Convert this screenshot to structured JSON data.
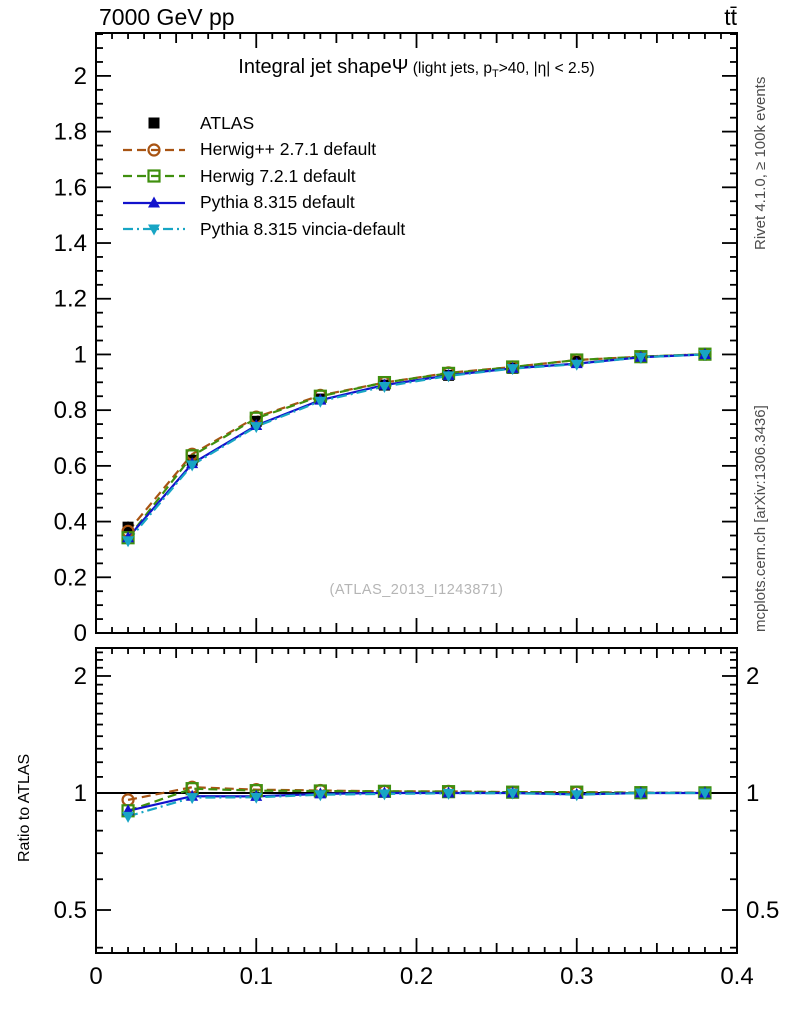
{
  "header": {
    "beam": "7000 GeV pp",
    "process": "tt̄"
  },
  "side": {
    "top": "Rivet 4.1.0, ≥ 100k events",
    "bottom": "mcplots.cern.ch [arXiv:1306.3436]"
  },
  "watermark": "(ATLAS_2013_I1243871)",
  "ratio_axis_label": "Ratio to ATLAS",
  "chart_data": {
    "type": "line",
    "title": "Integral jet shapeΨ",
    "title_note": {
      "pre": " (light jets, p",
      "sub": "T",
      "post": ">40, |η| < 2.5)"
    },
    "xlabel": "",
    "grid": false,
    "legend_position": "top-left-inside",
    "x": [
      0.02,
      0.06,
      0.1,
      0.14,
      0.18,
      0.22,
      0.26,
      0.3,
      0.34,
      0.38
    ],
    "axes": {
      "x": {
        "min": 0,
        "max": 0.4,
        "major_step": 0.1,
        "medium_step": 0.05,
        "minor_step": 0.01,
        "labels": [
          "0",
          "0.1",
          "0.2",
          "0.3",
          "0.4"
        ]
      },
      "main_y": {
        "scale": "linear",
        "min": 0,
        "max": 2.154,
        "minor_step": 0.05,
        "major_step": 0.2,
        "labels": [
          "0",
          "0.2",
          "0.4",
          "0.6",
          "0.8",
          "1",
          "1.2",
          "1.4",
          "1.6",
          "1.8",
          "2"
        ]
      },
      "ratio_y": {
        "scale": "log",
        "min": 0.388,
        "max": 2.36,
        "labeled_ticks": [
          0.5,
          1,
          2
        ],
        "minor_from": 0.4,
        "minor_to": 2.3,
        "minor_step": 0.1,
        "reference_line": 1
      }
    },
    "series": [
      {
        "name": "ATLAS",
        "color": "#000000",
        "marker": "square-filled",
        "line": "none",
        "values": [
          0.38,
          0.62,
          0.76,
          0.84,
          0.89,
          0.925,
          0.95,
          0.975,
          0.99,
          1.0
        ],
        "errors": [
          0.02,
          0.013,
          0.009,
          0.007,
          0.005,
          0.004,
          0.004,
          0.003,
          0.002,
          0.002
        ]
      },
      {
        "name": "Herwig++ 2.7.1 default",
        "color": "#a85413",
        "marker": "circle-open",
        "line": "dashed",
        "values": [
          0.365,
          0.642,
          0.775,
          0.853,
          0.899,
          0.934,
          0.955,
          0.98,
          0.992,
          1.001
        ],
        "ratio": [
          0.96,
          1.035,
          1.02,
          1.015,
          1.01,
          1.01,
          1.005,
          1.005,
          1.002,
          1.001
        ]
      },
      {
        "name": "Herwig 7.2.1 default",
        "color": "#3f8f0e",
        "marker": "square-open",
        "line": "dashed",
        "values": [
          0.342,
          0.636,
          0.771,
          0.85,
          0.899,
          0.932,
          0.955,
          0.98,
          0.992,
          1.001
        ],
        "ratio": [
          0.9,
          1.026,
          1.014,
          1.012,
          1.01,
          1.008,
          1.005,
          1.005,
          1.002,
          1.001
        ]
      },
      {
        "name": "Pythia 8.315 default",
        "color": "#1212cc",
        "marker": "triangle-up-filled",
        "line": "solid",
        "values": [
          0.342,
          0.608,
          0.745,
          0.836,
          0.89,
          0.925,
          0.95,
          0.967,
          0.99,
          1.0
        ],
        "ratio": [
          0.9,
          0.981,
          0.98,
          0.995,
          1.0,
          1.0,
          1.0,
          0.992,
          1.0,
          1.0
        ]
      },
      {
        "name": "Pythia 8.315 vincia-default",
        "color": "#18a5c4",
        "marker": "triangle-down-filled",
        "line": "dashdot",
        "values": [
          0.331,
          0.603,
          0.741,
          0.832,
          0.885,
          0.923,
          0.949,
          0.965,
          0.99,
          1.0
        ],
        "ratio": [
          0.871,
          0.973,
          0.975,
          0.99,
          0.995,
          0.998,
          0.999,
          0.99,
          1.0,
          1.0
        ]
      }
    ]
  }
}
